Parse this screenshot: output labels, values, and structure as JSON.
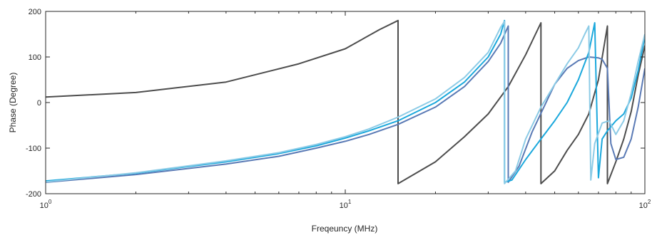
{
  "chart_data": {
    "type": "line",
    "title": "",
    "xlabel": "Freqeuncy (MHz)",
    "ylabel": "Phase (Degree)",
    "xscale": "log",
    "xlim": [
      1,
      100
    ],
    "ylim": [
      -200,
      200
    ],
    "xticks": [
      {
        "value": 1,
        "base": "10",
        "exp": "0"
      },
      {
        "value": 10,
        "base": "10",
        "exp": "1"
      },
      {
        "value": 100,
        "base": "10",
        "exp": "2"
      }
    ],
    "yticks": [
      {
        "value": -200,
        "label": "-200"
      },
      {
        "value": -100,
        "label": "-100"
      },
      {
        "value": 0,
        "label": "0"
      },
      {
        "value": 100,
        "label": "100"
      },
      {
        "value": 200,
        "label": "200"
      }
    ],
    "grid": false,
    "legend": "none",
    "series": [
      {
        "color": "#4d4d4d",
        "points": [
          [
            1,
            12
          ],
          [
            2,
            22
          ],
          [
            4,
            45
          ],
          [
            7,
            85
          ],
          [
            10,
            118
          ],
          [
            13,
            160
          ],
          [
            15,
            180
          ],
          [
            15,
            -178
          ],
          [
            20,
            -130
          ],
          [
            25,
            -75
          ],
          [
            30,
            -25
          ],
          [
            35,
            35
          ],
          [
            40,
            105
          ],
          [
            45,
            175
          ],
          [
            45,
            -178
          ],
          [
            50,
            -150
          ],
          [
            55,
            -105
          ],
          [
            60,
            -70
          ],
          [
            65,
            -25
          ],
          [
            70,
            50
          ],
          [
            75,
            168
          ],
          [
            75,
            -178
          ],
          [
            80,
            -130
          ],
          [
            85,
            -80
          ],
          [
            90,
            -20
          ],
          [
            95,
            60
          ],
          [
            100,
            125
          ]
        ]
      },
      {
        "color": "#5a7ab5",
        "points": [
          [
            1,
            -175
          ],
          [
            2,
            -158
          ],
          [
            4,
            -135
          ],
          [
            6,
            -118
          ],
          [
            8,
            -100
          ],
          [
            10,
            -85
          ],
          [
            12,
            -70
          ],
          [
            15,
            -48
          ],
          [
            20,
            -10
          ],
          [
            25,
            35
          ],
          [
            30,
            90
          ],
          [
            33,
            130
          ],
          [
            35,
            168
          ],
          [
            35,
            -175
          ],
          [
            38,
            -140
          ],
          [
            42,
            -65
          ],
          [
            46,
            -10
          ],
          [
            50,
            40
          ],
          [
            55,
            75
          ],
          [
            60,
            92
          ],
          [
            65,
            100
          ],
          [
            70,
            98
          ],
          [
            72,
            95
          ],
          [
            75,
            75
          ],
          [
            77,
            -90
          ],
          [
            80,
            -125
          ],
          [
            85,
            -120
          ],
          [
            90,
            -80
          ],
          [
            95,
            -10
          ],
          [
            100,
            75
          ]
        ]
      },
      {
        "color": "#1ba8dc",
        "points": [
          [
            1,
            -172
          ],
          [
            2,
            -155
          ],
          [
            4,
            -130
          ],
          [
            6,
            -112
          ],
          [
            8,
            -95
          ],
          [
            10,
            -78
          ],
          [
            12,
            -62
          ],
          [
            15,
            -40
          ],
          [
            20,
            0
          ],
          [
            25,
            45
          ],
          [
            30,
            100
          ],
          [
            33,
            150
          ],
          [
            34,
            180
          ],
          [
            34,
            -175
          ],
          [
            36,
            -170
          ],
          [
            40,
            -125
          ],
          [
            45,
            -80
          ],
          [
            50,
            -40
          ],
          [
            55,
            0
          ],
          [
            60,
            50
          ],
          [
            65,
            110
          ],
          [
            68,
            175
          ],
          [
            70,
            -165
          ],
          [
            72,
            -80
          ],
          [
            75,
            -62
          ],
          [
            80,
            -40
          ],
          [
            85,
            -25
          ],
          [
            90,
            10
          ],
          [
            95,
            70
          ],
          [
            100,
            145
          ]
        ]
      },
      {
        "color": "#8ccbe6",
        "points": [
          [
            1,
            -174
          ],
          [
            2,
            -154
          ],
          [
            4,
            -128
          ],
          [
            6,
            -110
          ],
          [
            8,
            -92
          ],
          [
            10,
            -75
          ],
          [
            12,
            -58
          ],
          [
            15,
            -32
          ],
          [
            20,
            8
          ],
          [
            25,
            55
          ],
          [
            30,
            110
          ],
          [
            33,
            165
          ],
          [
            34,
            178
          ],
          [
            34,
            -178
          ],
          [
            37,
            -150
          ],
          [
            40,
            -80
          ],
          [
            45,
            -10
          ],
          [
            50,
            40
          ],
          [
            55,
            85
          ],
          [
            60,
            120
          ],
          [
            63,
            150
          ],
          [
            65,
            168
          ],
          [
            66,
            -170
          ],
          [
            68,
            -90
          ],
          [
            72,
            -45
          ],
          [
            76,
            -40
          ],
          [
            80,
            -70
          ],
          [
            85,
            -40
          ],
          [
            90,
            20
          ],
          [
            95,
            90
          ],
          [
            100,
            150
          ]
        ]
      }
    ]
  }
}
